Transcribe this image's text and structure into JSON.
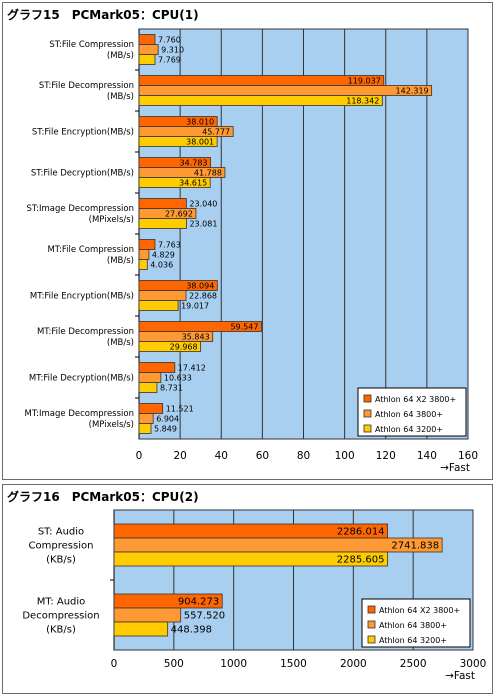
{
  "colors": {
    "plot_bg": "#a9cff0",
    "grid": "#333333",
    "series": [
      "#ff6600",
      "#ff9933",
      "#ffcc00"
    ],
    "bar_edge": "#333333"
  },
  "chart_data": [
    {
      "type": "bar",
      "orientation": "horizontal",
      "title": "グラフ15　PCMark05：CPU(1)",
      "xlabel": "→Fast",
      "xlim": [
        0,
        160
      ],
      "xticks": [
        0,
        20,
        40,
        60,
        80,
        100,
        120,
        140,
        160
      ],
      "legend_position": "bottom-right",
      "grid": true,
      "categories": [
        [
          "ST:File Compression",
          "(MB/s)"
        ],
        [
          "ST:File Decompression",
          "(MB/s)"
        ],
        [
          "ST:File Encryption(MB/s)"
        ],
        [
          "ST:File Decryption(MB/s)"
        ],
        [
          "ST:Image Decompression",
          "(MPixels/s)"
        ],
        [
          "MT:File Compression",
          "(MB/s)"
        ],
        [
          "MT:File Encryption(MB/s)"
        ],
        [
          "MT:File Decompression",
          "(MB/s)"
        ],
        [
          "MT:File Decryption(MB/s)"
        ],
        [
          "MT:Image Decompression",
          "(MPixels/s)"
        ]
      ],
      "series": [
        {
          "name": "Athlon 64 X2 3800+",
          "values": [
            7.76,
            119.037,
            38.01,
            34.783,
            23.04,
            7.763,
            38.094,
            59.547,
            17.412,
            11.521
          ],
          "labels": [
            "7.760",
            "119.037",
            "38.010",
            "34.783",
            "23.040",
            "7.763",
            "38.094",
            "59.547",
            "17.412",
            "11.521"
          ]
        },
        {
          "name": "Athlon 64 3800+",
          "values": [
            9.31,
            142.319,
            45.777,
            41.788,
            27.692,
            4.829,
            22.868,
            35.843,
            10.633,
            6.904
          ],
          "labels": [
            "9.310",
            "142.319",
            "45.777",
            "41.788",
            "27.692",
            "4.829",
            "22.868",
            "35.843",
            "10.633",
            "6.904"
          ]
        },
        {
          "name": "Athlon 64 3200+",
          "values": [
            7.769,
            118.342,
            38.001,
            34.615,
            23.081,
            4.036,
            19.017,
            29.968,
            8.731,
            5.849
          ],
          "labels": [
            "7.769",
            "118.342",
            "38.001",
            "34.615",
            "23.081",
            "4.036",
            "19.017",
            "29.968",
            "8.731",
            "5.849"
          ]
        }
      ]
    },
    {
      "type": "bar",
      "orientation": "horizontal",
      "title": "グラフ16　PCMark05：CPU(2)",
      "xlabel": "→Fast",
      "xlim": [
        0,
        3000
      ],
      "xticks": [
        0,
        500,
        1000,
        1500,
        2000,
        2500,
        3000
      ],
      "legend_position": "bottom-right",
      "grid": true,
      "categories": [
        [
          "ST: Audio",
          "Compression",
          "(KB/s)"
        ],
        [
          "MT: Audio",
          "Decompression",
          "(KB/s)"
        ]
      ],
      "series": [
        {
          "name": "Athlon 64 X2 3800+",
          "values": [
            2286.014,
            904.273
          ],
          "labels": [
            "2286.014",
            "904.273"
          ]
        },
        {
          "name": "Athlon 64 3800+",
          "values": [
            2741.838,
            557.52
          ],
          "labels": [
            "2741.838",
            "557.520"
          ]
        },
        {
          "name": "Athlon 64 3200+",
          "values": [
            2285.605,
            448.398
          ],
          "labels": [
            "2285.605",
            "448.398"
          ]
        }
      ]
    }
  ]
}
